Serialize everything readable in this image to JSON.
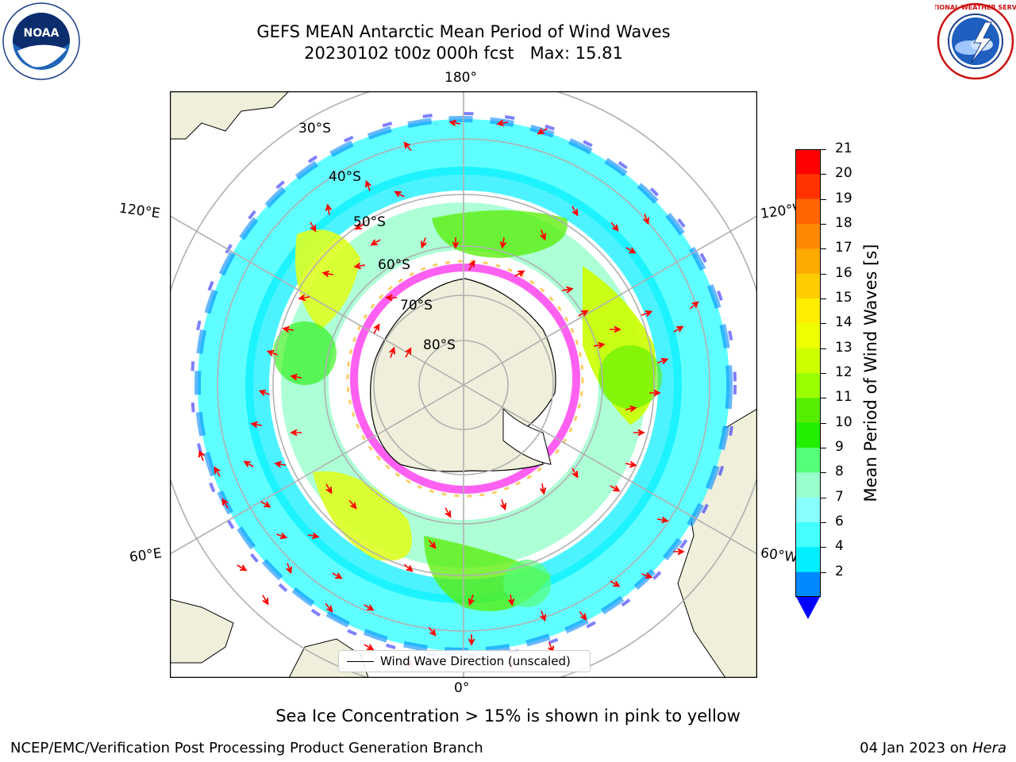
{
  "title_line1": "GEFS MEAN Antarctic Mean Period of Wind Waves",
  "title_line2": "20230102 t00z 000h fcst   Max: 15.81",
  "logos": {
    "left": "noaa-logo",
    "right": "nws-logo"
  },
  "logo_text": {
    "noaa_center": "NOAA",
    "noaa_ring": "NATIONAL OCEANIC AND ATMOSPHERIC ADMINISTRATION · U.S. DEPARTMENT OF COMMERCE",
    "nws_ring": "NATIONAL WEATHER SERVICE"
  },
  "longitude_labels": {
    "top": "180°",
    "bottom": "0°",
    "left_upper": "120°E",
    "left_lower": "60°E",
    "right_upper": "120°W",
    "right_lower": "60°W"
  },
  "latitude_labels": [
    "30°S",
    "40°S",
    "50°S",
    "60°S",
    "70°S",
    "80°S"
  ],
  "legend": {
    "label": "Wind Wave Direction (unscaled)"
  },
  "colorbar": {
    "label": "Mean Period of Wind Waves [s]",
    "ticks": [
      "21",
      "20",
      "19",
      "18",
      "17",
      "16",
      "15",
      "14",
      "13",
      "12",
      "11",
      "10",
      "9",
      "8",
      "7",
      "6",
      "4",
      "2"
    ],
    "colors": [
      "#ff0000",
      "#ff3300",
      "#ff6600",
      "#ff8800",
      "#ffaa00",
      "#ffcc00",
      "#ffee00",
      "#eeff00",
      "#ccff00",
      "#99ff00",
      "#55ee00",
      "#22ee00",
      "#55ff77",
      "#99ffcc",
      "#88ffff",
      "#44ffff",
      "#00eeff",
      "#0088ff"
    ],
    "extend_color": "#0000ff"
  },
  "colors": {
    "land": "#efefdb",
    "ocean_no_data": "#ffffff",
    "arrow": "#ff0000",
    "grid": "#b0b0b0",
    "sea_ice": "#ff44ee"
  },
  "note": "Sea Ice Concentration > 15% is shown in pink to yellow",
  "footer_left": "NCEP/EMC/Verification Post Processing Product Generation Branch",
  "footer_right_date": "04 Jan 2023 on ",
  "footer_right_machine": "Hera"
}
